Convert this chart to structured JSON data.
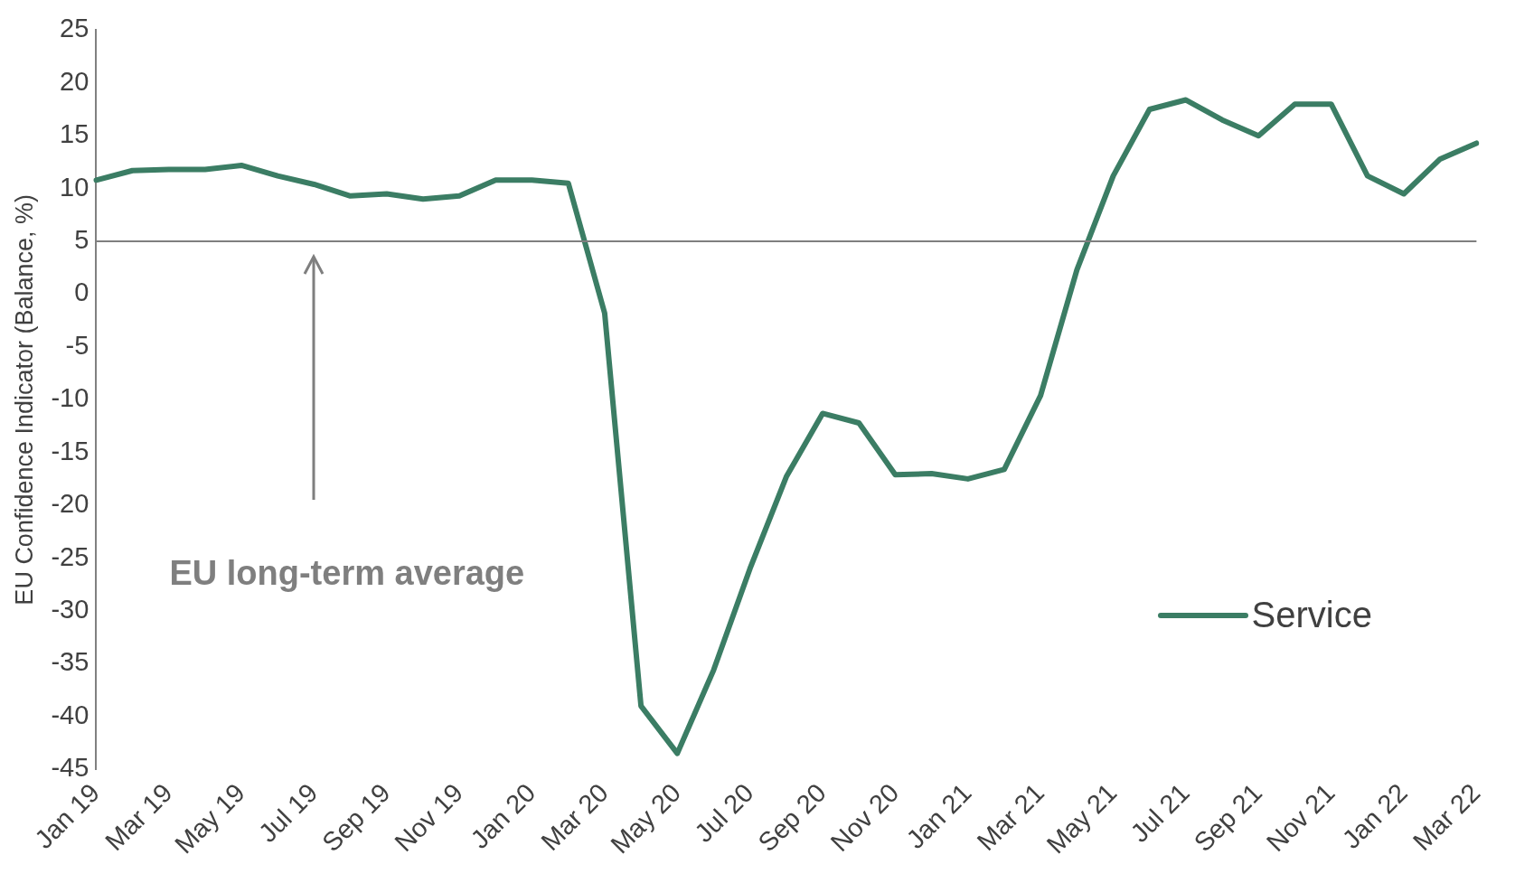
{
  "chart_data": {
    "type": "line",
    "ylabel": "EU Confidence Indicator (Balance, %)",
    "categories": [
      "Jan 19",
      null,
      "Mar 19",
      null,
      "May 19",
      null,
      "Jul 19",
      null,
      "Sep 19",
      null,
      "Nov 19",
      null,
      "Jan 20",
      null,
      "Mar 20",
      null,
      "May 20",
      null,
      "Jul 20",
      null,
      "Sep 20",
      null,
      "Nov 20",
      null,
      "Jan 21",
      null,
      "Mar 21",
      null,
      "May 21",
      null,
      "Jul 21",
      null,
      "Sep 21",
      null,
      "Nov 21",
      null,
      "Jan 22",
      null,
      "Mar 22"
    ],
    "series": [
      {
        "name": "Service",
        "color": "#3b7d64",
        "values": [
          10.8,
          11.7,
          11.8,
          11.8,
          12.2,
          11.2,
          10.4,
          9.3,
          9.5,
          9.0,
          9.3,
          10.8,
          10.8,
          10.5,
          -1.8,
          -39,
          -43.5,
          -35.6,
          -26,
          -17.3,
          -11.3,
          -12.2,
          -17.1,
          -17,
          -17.5,
          -16.6,
          -9.6,
          2.3,
          11.2,
          17.5,
          18.4,
          16.5,
          15,
          18,
          18,
          11.2,
          9.5,
          12.8,
          14.3
        ]
      }
    ],
    "ylim": [
      -45,
      25
    ],
    "yticks": [
      -45,
      -40,
      -35,
      -30,
      -25,
      -20,
      -15,
      -10,
      -5,
      0,
      5,
      10,
      15,
      20,
      25
    ],
    "ref_lines": [
      {
        "axis": "y",
        "value": 5,
        "label": "EU long-term average",
        "color": "#7f7f7f"
      }
    ],
    "legend": "bottom right",
    "grid": false,
    "marker": "none",
    "line_style": "solid"
  }
}
